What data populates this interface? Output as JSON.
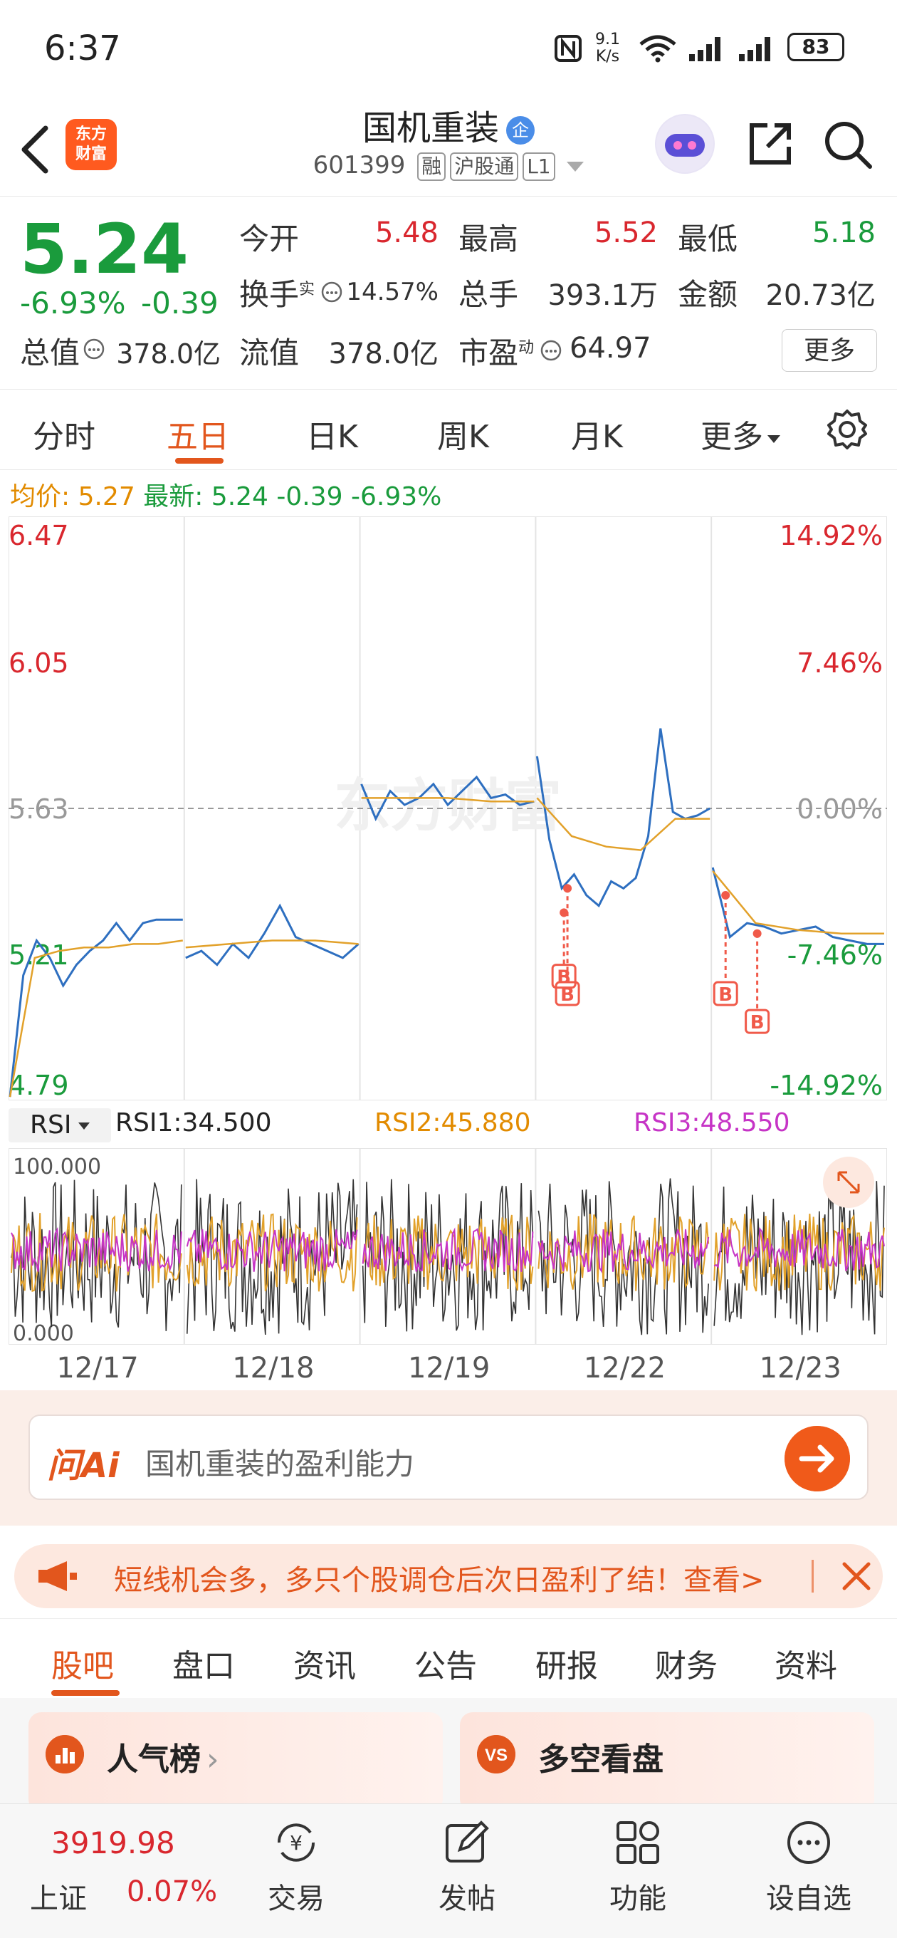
{
  "status_bar": {
    "time": "6:37",
    "speed": "9.1",
    "speed_unit": "K/s",
    "battery": "83"
  },
  "header": {
    "logo_line1": "东方",
    "logo_line2": "财富",
    "stock_name": "国机重装",
    "name_badge": "企",
    "stock_code": "601399",
    "tags": [
      "融",
      "沪股通",
      "L1"
    ]
  },
  "quote": {
    "price": "5.24",
    "change_pct": "-6.93%",
    "change": "-0.39",
    "open_label": "今开",
    "open_value": "5.48",
    "high_label": "最高",
    "high_value": "5.52",
    "low_label": "最低",
    "low_value": "5.18",
    "turnover_label": "换手",
    "turnover_sup": "实",
    "turnover_value": "14.57%",
    "volume_label": "总手",
    "volume_value": "393.1万",
    "amount_label": "金额",
    "amount_value": "20.73亿",
    "mktcap_label": "总值",
    "mktcap_value": "378.0亿",
    "float_label": "流值",
    "float_value": "378.0亿",
    "pe_label": "市盈",
    "pe_sup": "动",
    "pe_value": "64.97",
    "more_label": "更多"
  },
  "chart_tabs": [
    "分时",
    "五日",
    "日K",
    "周K",
    "月K",
    "更多"
  ],
  "active_chart_tab": "五日",
  "avg_line": {
    "avg_label": "均价:",
    "avg_value": "5.27",
    "latest_label": "最新:",
    "latest_value": "5.24",
    "latest_change": "-0.39",
    "latest_pct": "-6.93%"
  },
  "chart_data": {
    "type": "line",
    "watermark": "东方财富",
    "y_left_ticks": [
      "6.47",
      "6.05",
      "5.63",
      "5.21",
      "4.79"
    ],
    "y_right_ticks": [
      "14.92%",
      "7.46%",
      "0.00%",
      "-7.46%",
      "-14.92%"
    ],
    "ylim": [
      4.79,
      6.47
    ],
    "base_price": 5.63,
    "days": [
      "12/17",
      "12/18",
      "12/19",
      "12/22",
      "12/23"
    ],
    "series": [
      {
        "name": "price",
        "days": [
          [
            4.8,
            5.15,
            5.25,
            5.2,
            5.12,
            5.18,
            5.22,
            5.25,
            5.3,
            5.25,
            5.3,
            5.31,
            5.31,
            5.31
          ],
          [
            5.2,
            5.22,
            5.18,
            5.24,
            5.2,
            5.27,
            5.35,
            5.26,
            5.24,
            5.22,
            5.2,
            5.24
          ],
          [
            5.7,
            5.6,
            5.68,
            5.64,
            5.66,
            5.7,
            5.64,
            5.68,
            5.72,
            5.66,
            5.67,
            5.64,
            5.65
          ],
          [
            5.78,
            5.54,
            5.4,
            5.44,
            5.38,
            5.35,
            5.42,
            5.4,
            5.43,
            5.55,
            5.86,
            5.62,
            5.6,
            5.61,
            5.63
          ],
          [
            5.46,
            5.26,
            5.3,
            5.29,
            5.27,
            5.28,
            5.29,
            5.26,
            5.25,
            5.24,
            5.24
          ]
        ]
      },
      {
        "name": "avg",
        "days": [
          [
            4.8,
            5.2,
            5.22,
            5.23,
            5.23,
            5.24,
            5.24,
            5.25
          ],
          [
            5.23,
            5.24,
            5.25,
            5.25,
            5.24
          ],
          [
            5.66,
            5.66,
            5.66,
            5.65,
            5.65
          ],
          [
            5.66,
            5.55,
            5.52,
            5.51,
            5.6,
            5.6
          ],
          [
            5.45,
            5.3,
            5.28,
            5.27,
            5.27
          ]
        ]
      }
    ],
    "markers": [
      "B",
      "B",
      "B",
      "B"
    ]
  },
  "rsi": {
    "selector": "RSI",
    "rsi1": "RSI1:34.500",
    "rsi2": "RSI2:45.880",
    "rsi3": "RSI3:48.550",
    "max_label": "100.000",
    "min_label": "0.000"
  },
  "ai": {
    "logo": "问Ai",
    "prompt": "国机重装的盈利能力"
  },
  "banner": {
    "text": "短线机会多，多只个股调仓后次日盈利了结！查看>"
  },
  "section_tabs": [
    "股吧",
    "盘口",
    "资讯",
    "公告",
    "研报",
    "财务",
    "资料"
  ],
  "active_section_tab": "股吧",
  "cards": {
    "popular": "人气榜",
    "bull_bear": "多空看盘"
  },
  "bottom_nav": {
    "index_value": "3919.98",
    "index_name": "上证",
    "index_pct": "0.07%",
    "items": [
      "交易",
      "发帖",
      "功能",
      "设自选"
    ]
  }
}
